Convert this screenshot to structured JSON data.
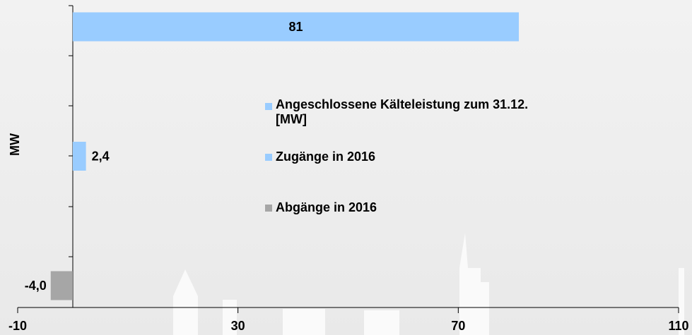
{
  "chart_data": {
    "type": "bar",
    "orientation": "horizontal",
    "y_label": "MW",
    "categories": [
      null,
      null,
      null
    ],
    "series": [
      {
        "name": "Angeschlossene Kälteleistung zum 31.12. [MW]",
        "color": "#99ccff",
        "values": [
          81,
          null,
          null
        ],
        "value_labels": [
          "81",
          null,
          null
        ]
      },
      {
        "name": "Zugänge in 2016",
        "color": "#99ccff",
        "values": [
          null,
          2.4,
          null
        ],
        "value_labels": [
          null,
          "2,4",
          null
        ]
      },
      {
        "name": "Abgänge in 2016",
        "color": "#a6a6a6",
        "values": [
          null,
          null,
          -4.0
        ],
        "value_labels": [
          null,
          null,
          "-4,0"
        ]
      }
    ],
    "xlim": [
      -10,
      110
    ],
    "xticks": [
      -10,
      30,
      70,
      110
    ],
    "grid": false
  }
}
